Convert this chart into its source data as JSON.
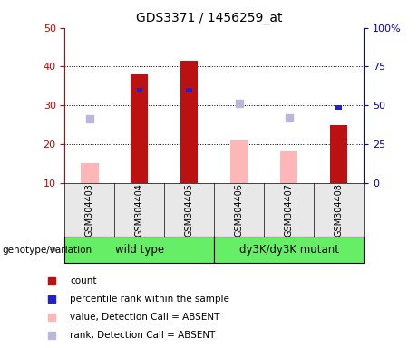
{
  "title": "GDS3371 / 1456259_at",
  "samples": [
    "GSM304403",
    "GSM304404",
    "GSM304405",
    "GSM304406",
    "GSM304407",
    "GSM304408"
  ],
  "count_values": [
    null,
    38.0,
    41.5,
    null,
    null,
    25.0
  ],
  "rank_values_left": [
    null,
    34.0,
    34.0,
    null,
    null,
    29.5
  ],
  "absent_value": [
    15.0,
    null,
    null,
    21.0,
    18.0,
    null
  ],
  "absent_rank_left": [
    26.5,
    null,
    null,
    30.5,
    26.8,
    null
  ],
  "ylim_left": [
    10,
    50
  ],
  "ylim_right": [
    0,
    100
  ],
  "yticks_left": [
    10,
    20,
    30,
    40,
    50
  ],
  "yticks_right": [
    0,
    25,
    50,
    75,
    100
  ],
  "yticklabels_right": [
    "0",
    "25",
    "50",
    "75",
    "100%"
  ],
  "bar_color_count": "#bb1111",
  "bar_color_rank": "#2222cc",
  "bar_color_absent_value": "#ffb6b6",
  "bar_color_absent_rank": "#b8b8dd",
  "label_color_left": "#cc0000",
  "label_color_right": "#0000cc",
  "bg_color": "#e8e8e8",
  "green_color": "#66ee66",
  "bar_width": 0.35,
  "rank_bar_width": 0.12
}
